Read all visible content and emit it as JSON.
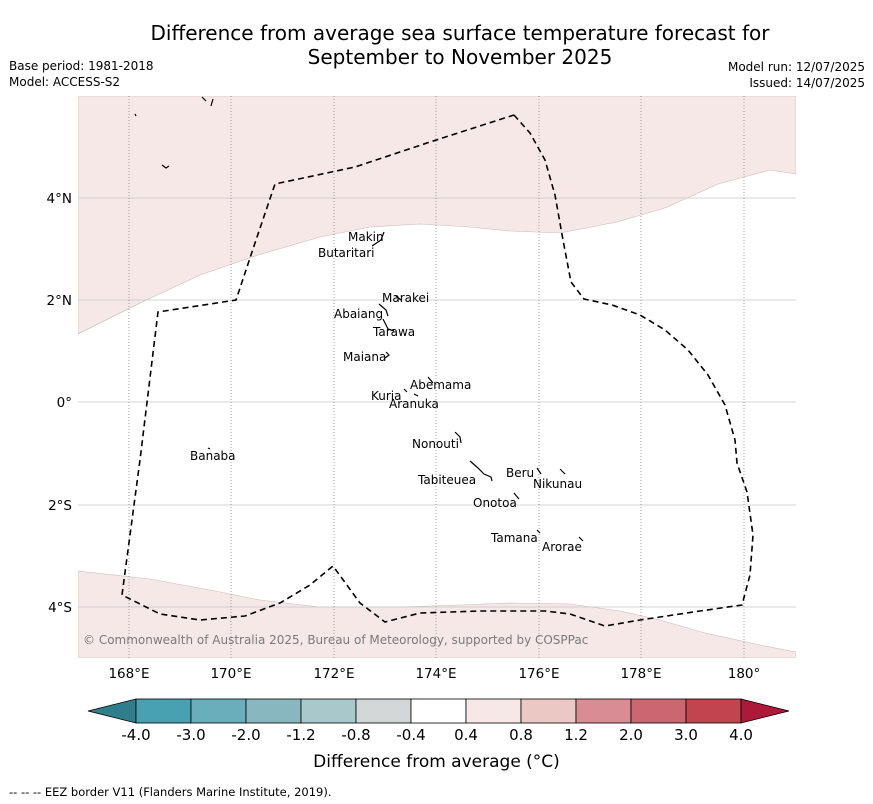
{
  "title_line1": "Difference from average sea surface temperature forecast for",
  "title_line2": "September to November 2025",
  "meta_left": {
    "base_period": "Base period: 1981-2018",
    "model": "Model: ACCESS-S2"
  },
  "meta_right": {
    "model_run": "Model run: 12/07/2025",
    "issued": "Issued: 14/07/2025"
  },
  "map": {
    "lon_ticks": [
      "168°E",
      "170°E",
      "172°E",
      "174°E",
      "176°E",
      "178°E",
      "180°"
    ],
    "lat_ticks": [
      "4°N",
      "2°N",
      "0°",
      "2°S",
      "4°S"
    ],
    "copyright": "© Commonwealth of Australia 2025, Bureau of Meteorology, supported by COSPPac",
    "islands": [
      "Makin",
      "Butaritari",
      "Marakei",
      "Abaiang",
      "Tarawa",
      "Maiana",
      "Abemama",
      "Kuria",
      "Aranuka",
      "Nonouti",
      "Banaba",
      "Beru",
      "Nikunau",
      "Tabiteuea",
      "Onotoa",
      "Tamana",
      "Arorae"
    ],
    "anomaly_band_color": "#f5e8e7"
  },
  "colorbar": {
    "title": "Difference from average (°C)",
    "colors": [
      "#2e7f8b",
      "#47a1b0",
      "#6aaebb",
      "#88b7c0",
      "#a9c8cc",
      "#d2d6d6",
      "#ffffff",
      "#f5e8e7",
      "#ebc8c4",
      "#d98c93",
      "#cc6670",
      "#c2444f",
      "#ab1a38"
    ],
    "tick_labels": [
      "-4.0",
      "-3.0",
      "-2.0",
      "-1.2",
      "-0.8",
      "-0.4",
      "0.4",
      "0.8",
      "1.2",
      "2.0",
      "3.0",
      "4.0"
    ]
  },
  "footer": "--  --  -- EEZ border V11 (Flanders Marine Institute, 2019)."
}
